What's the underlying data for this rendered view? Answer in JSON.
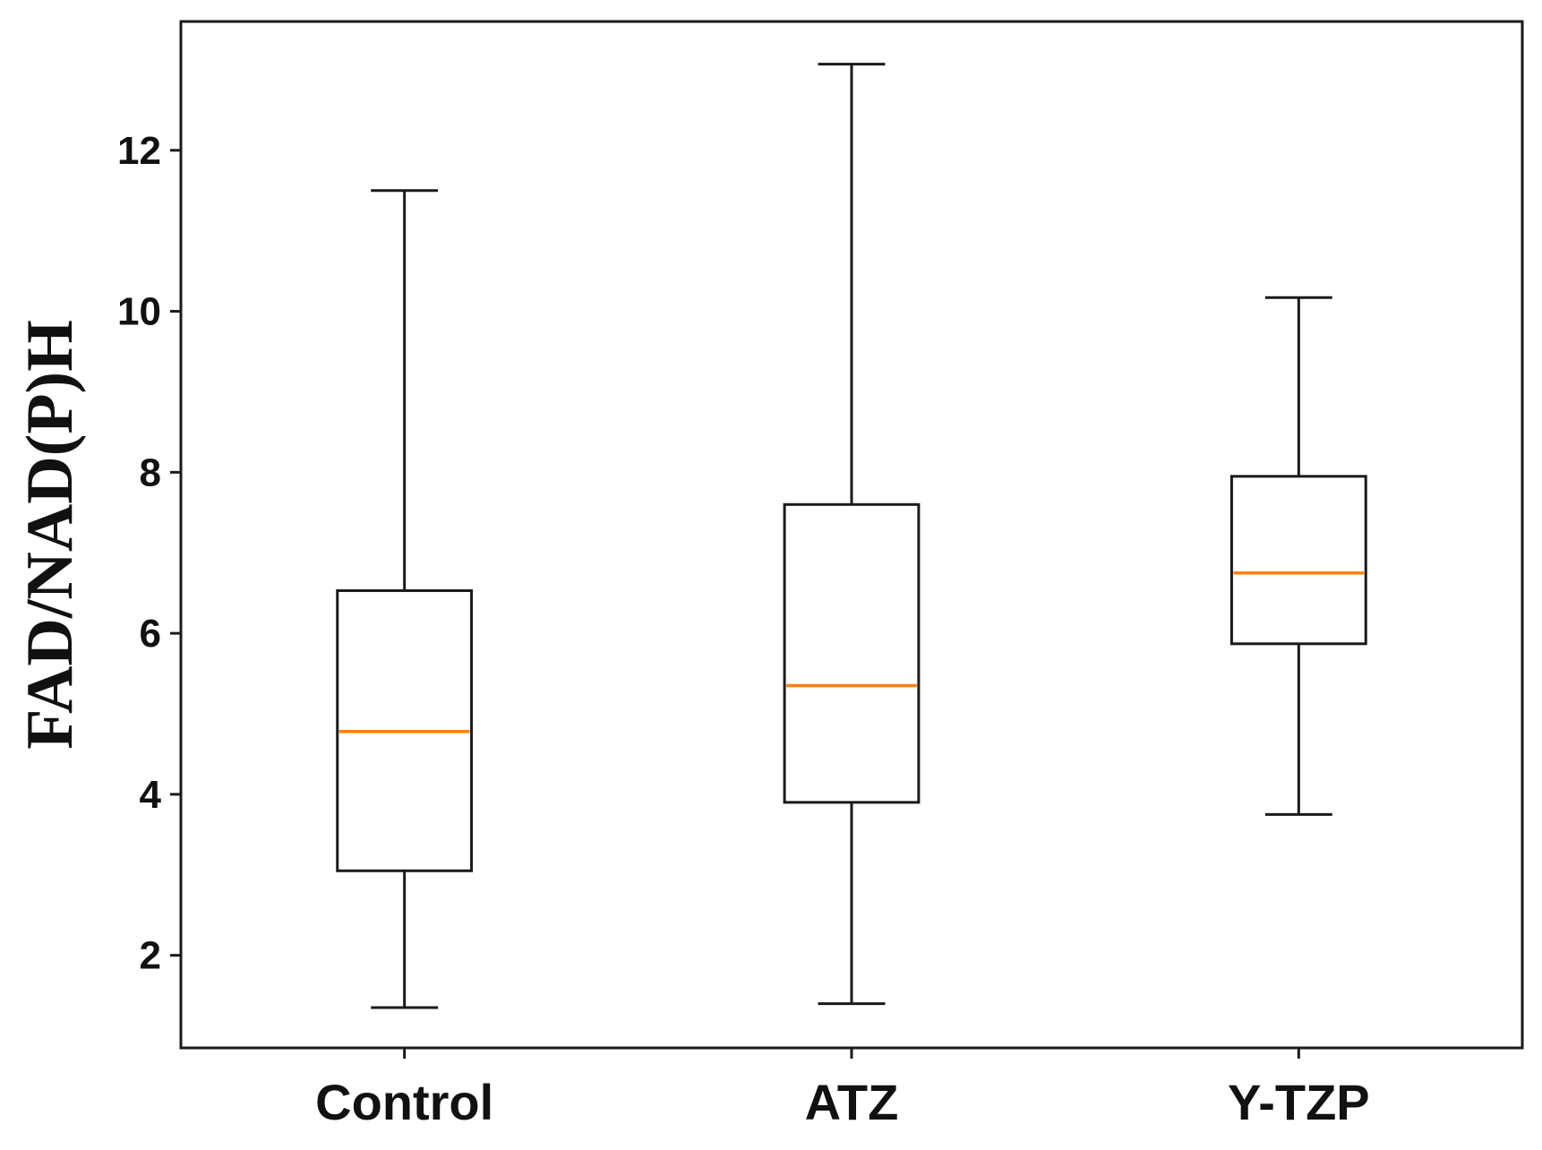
{
  "chart_data": {
    "type": "box",
    "title": "",
    "xlabel": "",
    "ylabel": "FAD/NAD(P)H",
    "ylim": [
      0.85,
      13.6
    ],
    "yticks": [
      2,
      4,
      6,
      8,
      10,
      12
    ],
    "grid": false,
    "categories": [
      "Control",
      "ATZ",
      "Y-TZP"
    ],
    "boxes": [
      {
        "name": "Control",
        "whisker_low": 1.35,
        "q1": 3.05,
        "median": 4.78,
        "q3": 6.53,
        "whisker_high": 11.5
      },
      {
        "name": "ATZ",
        "whisker_low": 1.4,
        "q1": 3.9,
        "median": 5.35,
        "q3": 7.6,
        "whisker_high": 13.07
      },
      {
        "name": "Y-TZP",
        "whisker_low": 3.75,
        "q1": 5.87,
        "median": 6.75,
        "q3": 7.95,
        "whisker_high": 10.17
      }
    ],
    "colors": {
      "box": "#1a1a1a",
      "median": "#ff7f0e",
      "axis": "#1a1a1a"
    }
  }
}
